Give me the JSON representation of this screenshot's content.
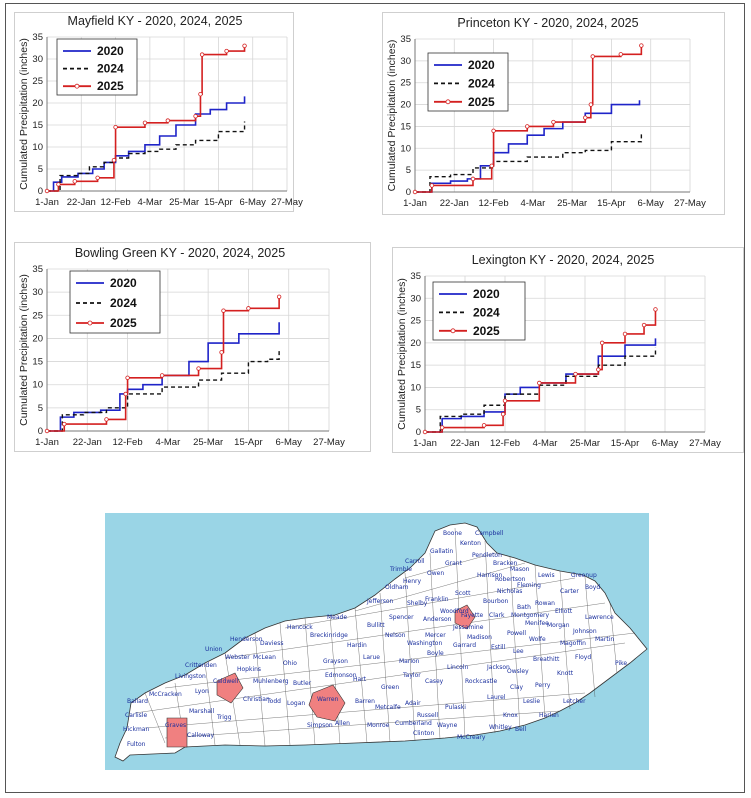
{
  "charts": [
    {
      "title": "Mayfield KY - 2020, 2024, 2025",
      "ylabel": "Cumulated Precipitation (inches)",
      "xticks": [
        "1-Jan",
        "22-Jan",
        "12-Feb",
        "4-Mar",
        "25-Mar",
        "15-Apr",
        "6-May",
        "27-May"
      ],
      "yticks": [
        "0",
        "5",
        "10",
        "15",
        "20",
        "25",
        "30",
        "35"
      ],
      "legend": [
        "2020",
        "2024",
        "2025"
      ]
    },
    {
      "title": "Princeton KY - 2020, 2024, 2025",
      "ylabel": "Cumulated Precipitation (inches)",
      "xticks": [
        "1-Jan",
        "22-Jan",
        "12-Feb",
        "4-Mar",
        "25-Mar",
        "15-Apr",
        "6-May",
        "27-May"
      ],
      "yticks": [
        "0",
        "5",
        "10",
        "15",
        "20",
        "25",
        "30",
        "35"
      ],
      "legend": [
        "2020",
        "2024",
        "2025"
      ]
    },
    {
      "title": "Bowling Green KY - 2020, 2024, 2025",
      "ylabel": "Cumulated Precipitation (inches)",
      "xticks": [
        "1-Jan",
        "22-Jan",
        "12-Feb",
        "4-Mar",
        "25-Mar",
        "15-Apr",
        "6-May",
        "27-May"
      ],
      "yticks": [
        "0",
        "5",
        "10",
        "15",
        "20",
        "25",
        "30",
        "35"
      ],
      "legend": [
        "2020",
        "2024",
        "2025"
      ]
    },
    {
      "title": "Lexington KY - 2020, 2024, 2025",
      "ylabel": "Cumulated Precipitation (inches)",
      "xticks": [
        "1-Jan",
        "22-Jan",
        "12-Feb",
        "4-Mar",
        "25-Mar",
        "15-Apr",
        "6-May",
        "27-May"
      ],
      "yticks": [
        "0",
        "5",
        "10",
        "15",
        "20",
        "25",
        "30",
        "35"
      ],
      "legend": [
        "2020",
        "2024",
        "2025"
      ]
    }
  ],
  "chart_data": [
    {
      "type": "line",
      "title": "Mayfield KY - 2020, 2024, 2025",
      "ylabel": "Cumulated Precipitation (inches)",
      "xlim": [
        "1-Jan",
        "27-May"
      ],
      "ylim": [
        0,
        35
      ],
      "grid": true,
      "legend_position": "top-left",
      "series": [
        {
          "name": "2020",
          "color": "#1f24c8",
          "style": "solid",
          "x": [
            "1-Jan",
            "5-Jan",
            "10-Jan",
            "20-Jan",
            "29-Jan",
            "5-Feb",
            "12-Feb",
            "20-Feb",
            "1-Mar",
            "10-Mar",
            "20-Mar",
            "1-Apr",
            "10-Apr",
            "20-Apr",
            "1-May"
          ],
          "y": [
            0,
            2,
            3.2,
            4,
            5,
            6.5,
            8,
            9,
            10.5,
            12.5,
            15,
            17.5,
            18.5,
            20,
            21.5
          ]
        },
        {
          "name": "2024",
          "color": "#111111",
          "style": "dashed",
          "x": [
            "1-Jan",
            "9-Jan",
            "20-Jan",
            "27-Jan",
            "5-Feb",
            "12-Feb",
            "20-Feb",
            "1-Mar",
            "10-Mar",
            "20-Mar",
            "1-Apr",
            "15-Apr",
            "1-May"
          ],
          "y": [
            0,
            3.5,
            4,
            5.5,
            6.5,
            7.5,
            8.5,
            9,
            9.5,
            10.5,
            11.5,
            13.5,
            15.8
          ]
        },
        {
          "name": "2025",
          "color": "#d42020",
          "style": "marker",
          "x": [
            "1-Jan",
            "8-Jan",
            "18-Jan",
            "1-Feb",
            "11-Feb",
            "12-Feb",
            "1-Mar",
            "15-Mar",
            "1-Apr",
            "4-Apr",
            "5-Apr",
            "20-Apr",
            "1-May"
          ],
          "y": [
            0,
            1.5,
            2.2,
            3,
            7,
            14.5,
            15.5,
            16,
            17,
            22,
            31,
            31.8,
            33
          ]
        }
      ]
    },
    {
      "type": "line",
      "title": "Princeton KY - 2020, 2024, 2025",
      "ylabel": "Cumulated Precipitation (inches)",
      "xlim": [
        "1-Jan",
        "27-May"
      ],
      "ylim": [
        0,
        35
      ],
      "grid": true,
      "legend_position": "top-left",
      "series": [
        {
          "name": "2020",
          "color": "#1f24c8",
          "style": "solid",
          "x": [
            "1-Jan",
            "10-Jan",
            "20-Jan",
            "29-Jan",
            "5-Feb",
            "12-Feb",
            "20-Feb",
            "1-Mar",
            "10-Mar",
            "20-Mar",
            "1-Apr",
            "15-Apr",
            "30-Apr"
          ],
          "y": [
            0,
            2,
            2.5,
            3,
            6,
            9,
            11,
            13,
            14.5,
            16,
            18,
            20,
            21
          ]
        },
        {
          "name": "2024",
          "color": "#111111",
          "style": "dashed",
          "x": [
            "1-Jan",
            "9-Jan",
            "20-Jan",
            "1-Feb",
            "12-Feb",
            "1-Mar",
            "20-Mar",
            "1-Apr",
            "15-Apr",
            "1-May"
          ],
          "y": [
            0,
            3.5,
            4,
            5.5,
            7,
            8,
            9,
            9.5,
            11.5,
            13.5
          ]
        },
        {
          "name": "2025",
          "color": "#d42020",
          "style": "marker",
          "x": [
            "1-Jan",
            "10-Jan",
            "1-Feb",
            "11-Feb",
            "12-Feb",
            "1-Mar",
            "15-Mar",
            "1-Apr",
            "4-Apr",
            "5-Apr",
            "20-Apr",
            "1-May"
          ],
          "y": [
            0,
            1.5,
            3,
            6,
            14,
            15,
            16,
            17,
            20,
            31,
            31.5,
            33.5
          ]
        }
      ]
    },
    {
      "type": "line",
      "title": "Bowling Green KY - 2020, 2024, 2025",
      "ylabel": "Cumulated Precipitation (inches)",
      "xlim": [
        "1-Jan",
        "27-May"
      ],
      "ylim": [
        0,
        35
      ],
      "grid": true,
      "legend_position": "top-right",
      "series": [
        {
          "name": "2020",
          "color": "#1f24c8",
          "style": "solid",
          "x": [
            "1-Jan",
            "8-Jan",
            "15-Jan",
            "29-Jan",
            "8-Feb",
            "12-Feb",
            "20-Feb",
            "1-Mar",
            "15-Mar",
            "25-Mar",
            "10-Apr",
            "1-May"
          ],
          "y": [
            0,
            3,
            4,
            4.5,
            8,
            9,
            10,
            12,
            15,
            19,
            21,
            23.5
          ]
        },
        {
          "name": "2024",
          "color": "#111111",
          "style": "dashed",
          "x": [
            "1-Jan",
            "9-Jan",
            "20-Jan",
            "1-Feb",
            "12-Feb",
            "1-Mar",
            "20-Mar",
            "1-Apr",
            "15-Apr",
            "25-Apr",
            "1-May"
          ],
          "y": [
            0,
            3.5,
            4,
            5,
            8,
            9.5,
            11,
            12.5,
            15,
            15.5,
            17.5
          ]
        },
        {
          "name": "2025",
          "color": "#d42020",
          "style": "marker",
          "x": [
            "1-Jan",
            "10-Jan",
            "1-Feb",
            "11-Feb",
            "12-Feb",
            "1-Mar",
            "20-Mar",
            "1-Apr",
            "2-Apr",
            "15-Apr",
            "1-May"
          ],
          "y": [
            0,
            1.5,
            2.5,
            8,
            11.5,
            12,
            13.5,
            17,
            26,
            26.5,
            29
          ]
        }
      ]
    },
    {
      "type": "line",
      "title": "Lexington KY - 2020, 2024, 2025",
      "ylabel": "Cumulated Precipitation (inches)",
      "xlim": [
        "1-Jan",
        "27-May"
      ],
      "ylim": [
        0,
        35
      ],
      "grid": true,
      "legend_position": "top-left",
      "series": [
        {
          "name": "2020",
          "color": "#1f24c8",
          "style": "solid",
          "x": [
            "1-Jan",
            "10-Jan",
            "20-Jan",
            "1-Feb",
            "12-Feb",
            "20-Feb",
            "1-Mar",
            "15-Mar",
            "1-Apr",
            "15-Apr",
            "1-May"
          ],
          "y": [
            0,
            3,
            3.5,
            4.5,
            8.5,
            10,
            11,
            13,
            17,
            19.5,
            21
          ]
        },
        {
          "name": "2024",
          "color": "#111111",
          "style": "dashed",
          "x": [
            "1-Jan",
            "9-Jan",
            "20-Jan",
            "1-Feb",
            "12-Feb",
            "1-Mar",
            "15-Mar",
            "1-Apr",
            "15-Apr",
            "1-May"
          ],
          "y": [
            0,
            3.5,
            4,
            6,
            8.5,
            10.5,
            12.5,
            15,
            17,
            19
          ]
        },
        {
          "name": "2025",
          "color": "#d42020",
          "style": "marker",
          "x": [
            "1-Jan",
            "10-Jan",
            "1-Feb",
            "11-Feb",
            "12-Feb",
            "1-Mar",
            "20-Mar",
            "1-Apr",
            "3-Apr",
            "15-Apr",
            "25-Apr",
            "1-May"
          ],
          "y": [
            0,
            1,
            1.5,
            4,
            7,
            11,
            13,
            14,
            20,
            22,
            24,
            27.5
          ]
        }
      ]
    }
  ],
  "map": {
    "counties": [
      "Boone",
      "Campbell",
      "Kenton",
      "Gallatin",
      "Pendleton",
      "Carroll",
      "Grant",
      "Bracken",
      "Trimble",
      "Mason",
      "Owen",
      "Harrison",
      "Henry",
      "Robertson",
      "Fleming",
      "Lewis",
      "Greenup",
      "Oldham",
      "Scott",
      "Nicholas",
      "Carter",
      "Boyd",
      "Franklin",
      "Bourbon",
      "Bath",
      "Rowan",
      "Jefferson",
      "Shelby",
      "Woodford",
      "Fayette",
      "Clark",
      "Montgomery",
      "Elliott",
      "Lawrence",
      "Spencer",
      "Anderson",
      "Jessamine",
      "Menifee",
      "Morgan",
      "Johnson",
      "Martin",
      "Meade",
      "Bullitt",
      "Nelson",
      "Mercer",
      "Madison",
      "Powell",
      "Wolfe",
      "Magoffin",
      "Hancock",
      "Breckinridge",
      "Washington",
      "Garrard",
      "Estill",
      "Lee",
      "Floyd",
      "Henderson",
      "Daviess",
      "Hardin",
      "Larue",
      "Boyle",
      "Breathitt",
      "Union",
      "Webster",
      "McLean",
      "Ohio",
      "Grayson",
      "Marion",
      "Lincoln",
      "Jackson",
      "Owsley",
      "Knott",
      "Pike",
      "Crittenden",
      "Hopkins",
      "Taylor",
      "Casey",
      "Rockcastle",
      "Clay",
      "Perry",
      "Livingston",
      "Caldwell",
      "Muhlenberg",
      "Butler",
      "Edmonson",
      "Hart",
      "Green",
      "Laurel",
      "Leslie",
      "Letcher",
      "Ballard",
      "McCracken",
      "Lyon",
      "Christian",
      "Todd",
      "Logan",
      "Warren",
      "Barren",
      "Metcalfe",
      "Adair",
      "Russell",
      "Pulaski",
      "Knox",
      "Harlan",
      "Carlisle",
      "Marshall",
      "Trigg",
      "Allen",
      "Simpson",
      "Monroe",
      "Cumberland",
      "Clinton",
      "Wayne",
      "McCreary",
      "Whitley",
      "Bell",
      "Hickman",
      "Graves",
      "Calloway",
      "Fulton"
    ],
    "highlighted": [
      "Graves",
      "Caldwell",
      "Warren",
      "Fayette"
    ],
    "water_color": "#9ad5e6",
    "land_color": "#ffffff",
    "highlight_color": "#f08080"
  }
}
